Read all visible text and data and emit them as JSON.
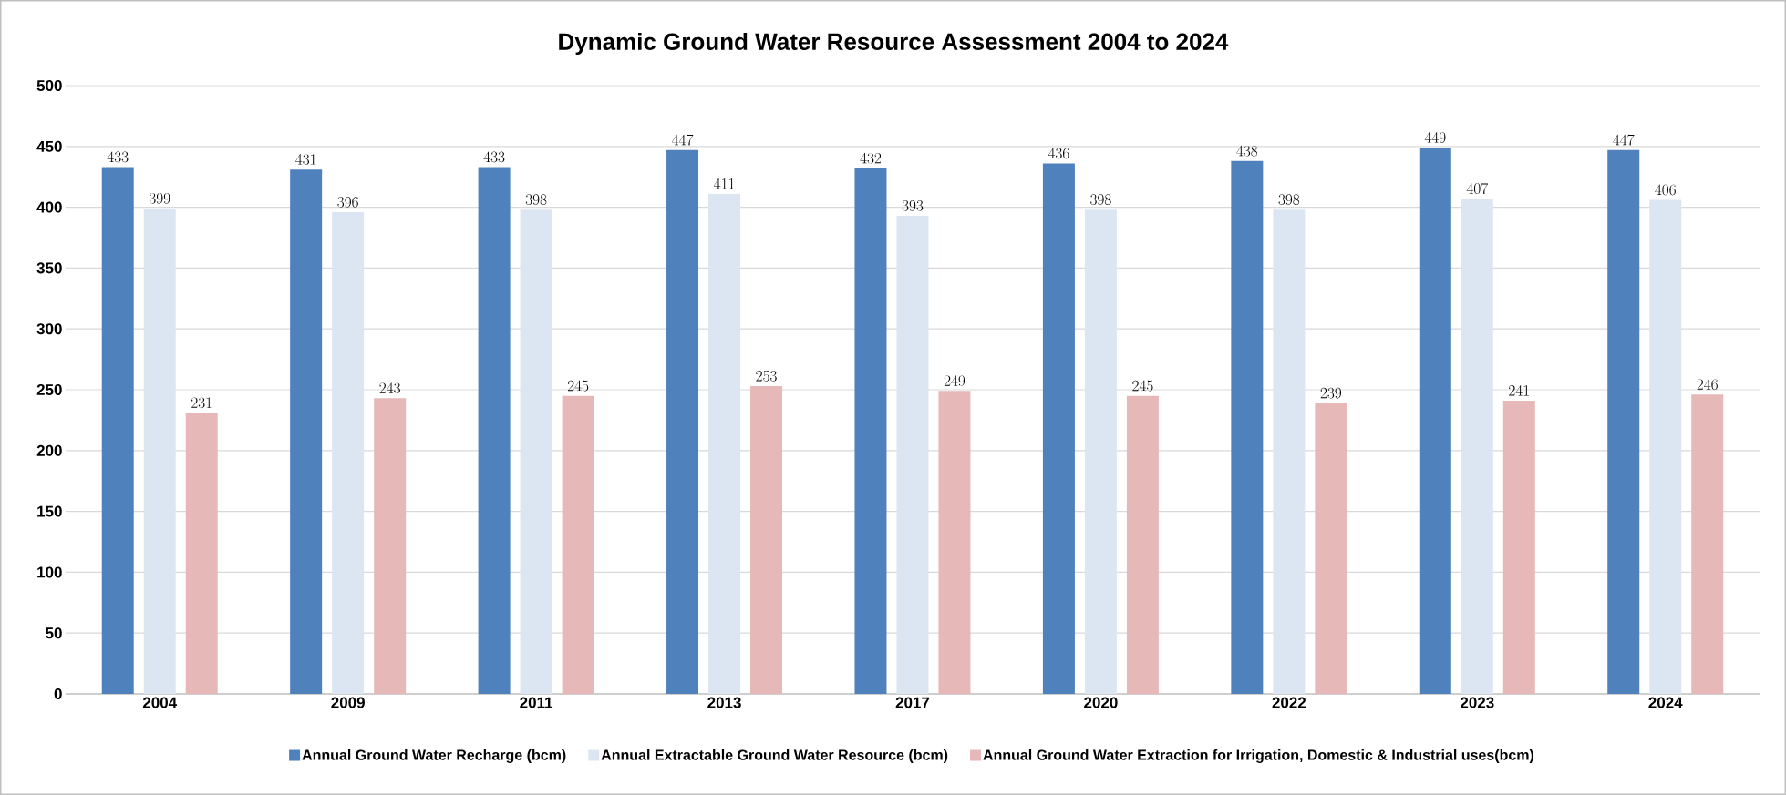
{
  "chart_data": {
    "type": "bar",
    "title": "Dynamic Ground Water Resource Assessment 2004 to 2024",
    "categories": [
      "2004",
      "2009",
      "2011",
      "2013",
      "2017",
      "2020",
      "2022",
      "2023",
      "2024"
    ],
    "series": [
      {
        "name": "Annual Ground Water Recharge (bcm)",
        "color": "#4f81bd",
        "values": [
          433,
          431,
          433,
          447,
          432,
          436,
          438,
          449,
          447
        ]
      },
      {
        "name": "Annual Extractable Ground Water Resource (bcm)",
        "color": "#dce6f2",
        "values": [
          399,
          396,
          398,
          411,
          393,
          398,
          398,
          407,
          406
        ]
      },
      {
        "name": "Annual Ground Water Extraction for Irrigation, Domestic & Industrial uses(bcm)",
        "color": "#e6b9b8",
        "values": [
          231,
          243,
          245,
          253,
          249,
          245,
          239,
          241,
          246
        ]
      }
    ],
    "ylim": [
      0,
      500
    ],
    "yticks": [
      0,
      50,
      100,
      150,
      200,
      250,
      300,
      350,
      400,
      450,
      500
    ],
    "grid": "y",
    "legend": "bottom",
    "data_labels": true
  }
}
